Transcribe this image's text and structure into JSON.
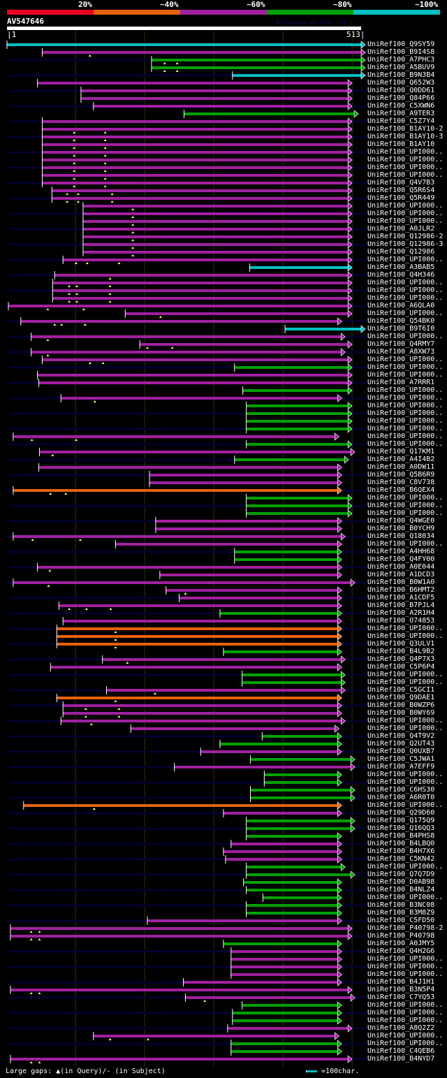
{
  "header": {
    "score_legend": [
      {
        "label": "20%",
        "color": "#ee0022"
      },
      {
        "label": "~40%",
        "color": "#e6620a"
      },
      {
        "label": "~60%",
        "color": "#a020a0"
      },
      {
        "label": "~80%",
        "color": "#00a000"
      },
      {
        "label": "~100%",
        "color": "#00c0c0"
      }
    ],
    "query_name": "AV547646",
    "credit": "AlignView.pm Beta rel.7",
    "query_start": "|1",
    "query_end": "513|"
  },
  "footer": {
    "gap_legend": "Large gaps: ▲(in Query)/- (in Subject)",
    "scale_legend": "=100char."
  },
  "colors": {
    "p": "#a020a0",
    "g": "#00a000",
    "c": "#00c0c0",
    "o": "#e6620a",
    "r": "#ee0022",
    "track": "#000030",
    "grid": "#303010"
  },
  "chart_data": {
    "type": "alignment-overview",
    "title": "AV547646",
    "query_length": 513,
    "x_range": [
      1,
      513
    ],
    "grid_ticks": [
      100,
      200,
      300,
      400,
      500
    ],
    "legend": [
      "20%",
      "~40%",
      "~60%",
      "~80%",
      "~100%"
    ],
    "hits": [
      {
        "label": "UniRef100_Q9SY59",
        "c": "c",
        "s": 1,
        "e": 513,
        "gaps": []
      },
      {
        "label": "UniRef100_B9I4S8",
        "c": "p",
        "s": 52,
        "e": 513,
        "gaps": [
          121
        ]
      },
      {
        "label": "UniRef100_A7PHC3",
        "c": "g",
        "s": 210,
        "e": 513,
        "gaps": [
          229,
          247
        ]
      },
      {
        "label": "UniRef100_A5BUV9",
        "c": "g",
        "s": 210,
        "e": 513,
        "gaps": [
          229,
          247
        ]
      },
      {
        "label": "UniRef100_B9N3B4",
        "c": "c",
        "s": 327,
        "e": 513,
        "gaps": []
      },
      {
        "label": "UniRef100_Q652W3",
        "c": "p",
        "s": 45,
        "e": 494,
        "gaps": []
      },
      {
        "label": "UniRef100_Q0DD61",
        "c": "p",
        "s": 108,
        "e": 494,
        "gaps": []
      },
      {
        "label": "UniRef100_Q84P66",
        "c": "p",
        "s": 108,
        "e": 494,
        "gaps": []
      },
      {
        "label": "UniRef100_C5XWN6",
        "c": "p",
        "s": 126,
        "e": 494,
        "gaps": []
      },
      {
        "label": "UniRef100_A9TER3",
        "c": "g",
        "s": 257,
        "e": 503,
        "gaps": []
      },
      {
        "label": "UniRef100_C5Z7Y4",
        "c": "p",
        "s": 52,
        "e": 494,
        "gaps": []
      },
      {
        "label": "UniRef100_B1AY10-2",
        "c": "p",
        "s": 52,
        "e": 494,
        "gaps": [
          98,
          143
        ]
      },
      {
        "label": "UniRef100_B1AY10-3",
        "c": "p",
        "s": 52,
        "e": 494,
        "gaps": [
          98,
          143
        ]
      },
      {
        "label": "UniRef100_B1AY10",
        "c": "p",
        "s": 52,
        "e": 494,
        "gaps": [
          98,
          143
        ]
      },
      {
        "label": "UniRef100_UPI000..",
        "c": "p",
        "s": 52,
        "e": 494,
        "gaps": [
          98,
          143
        ]
      },
      {
        "label": "UniRef100_UPI000..",
        "c": "p",
        "s": 52,
        "e": 494,
        "gaps": [
          98,
          143
        ]
      },
      {
        "label": "UniRef100_UPI000..",
        "c": "p",
        "s": 52,
        "e": 494,
        "gaps": [
          98,
          143
        ]
      },
      {
        "label": "UniRef100_UPI000..",
        "c": "p",
        "s": 52,
        "e": 494,
        "gaps": [
          98,
          143
        ]
      },
      {
        "label": "UniRef100_Q4V7B3",
        "c": "p",
        "s": 52,
        "e": 494,
        "gaps": [
          98,
          143
        ]
      },
      {
        "label": "UniRef100_Q5R6S4",
        "c": "p",
        "s": 66,
        "e": 494,
        "gaps": [
          88,
          104,
          153
        ]
      },
      {
        "label": "UniRef100_Q5R449",
        "c": "p",
        "s": 66,
        "e": 494,
        "gaps": [
          88,
          104,
          153
        ]
      },
      {
        "label": "UniRef100_UPI000..",
        "c": "p",
        "s": 111,
        "e": 494,
        "gaps": [
          183
        ]
      },
      {
        "label": "UniRef100_UPI000..",
        "c": "p",
        "s": 111,
        "e": 494,
        "gaps": [
          183
        ]
      },
      {
        "label": "UniRef100_UPI000..",
        "c": "p",
        "s": 111,
        "e": 494,
        "gaps": [
          183
        ]
      },
      {
        "label": "UniRef100_A0JLR2",
        "c": "p",
        "s": 111,
        "e": 494,
        "gaps": [
          183
        ]
      },
      {
        "label": "UniRef100_Q12986-2",
        "c": "p",
        "s": 111,
        "e": 494,
        "gaps": [
          183
        ]
      },
      {
        "label": "UniRef100_Q12986-3",
        "c": "p",
        "s": 111,
        "e": 494,
        "gaps": [
          183
        ]
      },
      {
        "label": "UniRef100_Q12986",
        "c": "p",
        "s": 111,
        "e": 494,
        "gaps": [
          183
        ]
      },
      {
        "label": "UniRef100_UPI000..",
        "c": "p",
        "s": 82,
        "e": 494,
        "gaps": [
          101,
          117,
          163
        ]
      },
      {
        "label": "UniRef100_A3BAB5",
        "c": "c",
        "s": 352,
        "e": 494,
        "gaps": []
      },
      {
        "label": "UniRef100_Q4H346",
        "c": "p",
        "s": 70,
        "e": 494,
        "gaps": [
          150
        ]
      },
      {
        "label": "UniRef100_UPI000..",
        "c": "p",
        "s": 67,
        "e": 494,
        "gaps": [
          91,
          102,
          150
        ]
      },
      {
        "label": "UniRef100_UPI000..",
        "c": "p",
        "s": 67,
        "e": 494,
        "gaps": [
          91,
          102,
          150
        ]
      },
      {
        "label": "UniRef100_UPI000..",
        "c": "p",
        "s": 67,
        "e": 494,
        "gaps": [
          91,
          102,
          150
        ]
      },
      {
        "label": "UniRef100_A6QLA0",
        "c": "p",
        "s": 3,
        "e": 494,
        "gaps": [
          60,
          112
        ]
      },
      {
        "label": "UniRef100_UPI000..",
        "c": "p",
        "s": 172,
        "e": 494,
        "gaps": [
          223
        ]
      },
      {
        "label": "UniRef100_Q54BK0",
        "c": "p",
        "s": 21,
        "e": 479,
        "gaps": [
          70,
          80,
          114
        ]
      },
      {
        "label": "UniRef100_B9T6I0",
        "c": "c",
        "s": 403,
        "e": 513,
        "gaps": []
      },
      {
        "label": "UniRef100_UPI000..",
        "c": "p",
        "s": 36,
        "e": 484,
        "gaps": [
          60
        ]
      },
      {
        "label": "UniRef100_Q4RMY7",
        "c": "p",
        "s": 193,
        "e": 494,
        "gaps": [
          204,
          240
        ]
      },
      {
        "label": "UniRef100_A8XW73",
        "c": "p",
        "s": 36,
        "e": 484,
        "gaps": [
          60
        ]
      },
      {
        "label": "UniRef100_UPI000..",
        "c": "p",
        "s": 52,
        "e": 494,
        "gaps": [
          121,
          140
        ]
      },
      {
        "label": "UniRef100_UPI000..",
        "c": "g",
        "s": 330,
        "e": 494,
        "gaps": []
      },
      {
        "label": "UniRef100_UPI000..",
        "c": "p",
        "s": 45,
        "e": 494,
        "gaps": []
      },
      {
        "label": "UniRef100_A7RRR1",
        "c": "p",
        "s": 47,
        "e": 494,
        "gaps": []
      },
      {
        "label": "UniRef100_UPI000..",
        "c": "g",
        "s": 342,
        "e": 494,
        "gaps": []
      },
      {
        "label": "UniRef100_UPI000..",
        "c": "p",
        "s": 79,
        "e": 479,
        "gaps": [
          128
        ]
      },
      {
        "label": "UniRef100_UPI000..",
        "c": "g",
        "s": 347,
        "e": 494,
        "gaps": []
      },
      {
        "label": "UniRef100_UPI000..",
        "c": "g",
        "s": 347,
        "e": 494,
        "gaps": []
      },
      {
        "label": "UniRef100_UPI000..",
        "c": "g",
        "s": 347,
        "e": 494,
        "gaps": []
      },
      {
        "label": "UniRef100_UPI000..",
        "c": "g",
        "s": 347,
        "e": 494,
        "gaps": []
      },
      {
        "label": "UniRef100_UPI000..",
        "c": "p",
        "s": 10,
        "e": 475,
        "gaps": [
          37,
          101
        ]
      },
      {
        "label": "UniRef100_UPI000..",
        "c": "g",
        "s": 347,
        "e": 494,
        "gaps": []
      },
      {
        "label": "UniRef100_Q17KM1",
        "c": "p",
        "s": 48,
        "e": 498,
        "gaps": [
          67
        ]
      },
      {
        "label": "UniRef100_A4I4B2",
        "c": "g",
        "s": 330,
        "e": 489,
        "gaps": []
      },
      {
        "label": "UniRef100_A0DW11",
        "c": "p",
        "s": 47,
        "e": 479,
        "gaps": []
      },
      {
        "label": "UniRef100_Q5B6R9",
        "c": "p",
        "s": 207,
        "e": 479,
        "gaps": []
      },
      {
        "label": "UniRef100_C8V738",
        "c": "p",
        "s": 207,
        "e": 479,
        "gaps": []
      },
      {
        "label": "UniRef100_B6QEX4",
        "c": "o",
        "s": 10,
        "e": 479,
        "gaps": [
          64,
          86
        ]
      },
      {
        "label": "UniRef100_UPI000..",
        "c": "g",
        "s": 347,
        "e": 494,
        "gaps": []
      },
      {
        "label": "UniRef100_UPI000..",
        "c": "g",
        "s": 347,
        "e": 494,
        "gaps": []
      },
      {
        "label": "UniRef100_UPI000..",
        "c": "g",
        "s": 347,
        "e": 494,
        "gaps": []
      },
      {
        "label": "UniRef100_Q4WGE0",
        "c": "p",
        "s": 216,
        "e": 479,
        "gaps": []
      },
      {
        "label": "UniRef100_B0YCH9",
        "c": "p",
        "s": 216,
        "e": 479,
        "gaps": []
      },
      {
        "label": "UniRef100_Q18034",
        "c": "p",
        "s": 10,
        "e": 484,
        "gaps": [
          38,
          107
        ]
      },
      {
        "label": "UniRef100_UPI000..",
        "c": "p",
        "s": 158,
        "e": 479,
        "gaps": []
      },
      {
        "label": "UniRef100_A4HH68",
        "c": "g",
        "s": 330,
        "e": 479,
        "gaps": []
      },
      {
        "label": "UniRef100_Q4FY00",
        "c": "g",
        "s": 330,
        "e": 479,
        "gaps": []
      },
      {
        "label": "UniRef100_A0E044",
        "c": "p",
        "s": 45,
        "e": 479,
        "gaps": [
          63
        ]
      },
      {
        "label": "UniRef100_A1DCD3",
        "c": "p",
        "s": 222,
        "e": 479,
        "gaps": []
      },
      {
        "label": "UniRef100_B0W1A0",
        "c": "p",
        "s": 10,
        "e": 498,
        "gaps": [
          61
        ]
      },
      {
        "label": "UniRef100_B6HMT2",
        "c": "p",
        "s": 231,
        "e": 479,
        "gaps": [
          259
        ]
      },
      {
        "label": "UniRef100_A1CDF5",
        "c": "p",
        "s": 250,
        "e": 479,
        "gaps": []
      },
      {
        "label": "UniRef100_B7PJL4",
        "c": "p",
        "s": 76,
        "e": 479,
        "gaps": [
          91,
          116,
          151
        ]
      },
      {
        "label": "UniRef100_A2R1H4",
        "c": "g",
        "s": 309,
        "e": 479,
        "gaps": []
      },
      {
        "label": "UniRef100_O74853",
        "c": "p",
        "s": 82,
        "e": 479,
        "gaps": []
      },
      {
        "label": "UniRef100_UPI000..",
        "c": "o",
        "s": 73,
        "e": 479,
        "gaps": [
          158
        ]
      },
      {
        "label": "UniRef100_UPI000..",
        "c": "o",
        "s": 73,
        "e": 479,
        "gaps": [
          158
        ]
      },
      {
        "label": "UniRef100_Q3ULV1",
        "c": "o",
        "s": 73,
        "e": 479,
        "gaps": [
          158
        ]
      },
      {
        "label": "UniRef100_B4L9B2",
        "c": "g",
        "s": 314,
        "e": 479,
        "gaps": []
      },
      {
        "label": "UniRef100_Q4P7X3",
        "c": "p",
        "s": 139,
        "e": 484,
        "gaps": [
          175
        ]
      },
      {
        "label": "UniRef100_C5P6P4",
        "c": "p",
        "s": 64,
        "e": 479,
        "gaps": []
      },
      {
        "label": "UniRef100_UPI000..",
        "c": "g",
        "s": 341,
        "e": 484,
        "gaps": []
      },
      {
        "label": "UniRef100_UPI000..",
        "c": "g",
        "s": 341,
        "e": 484,
        "gaps": []
      },
      {
        "label": "UniRef100_C5GCI1",
        "c": "p",
        "s": 145,
        "e": 484,
        "gaps": [
          215
        ]
      },
      {
        "label": "UniRef100_Q9DAE1",
        "c": "o",
        "s": 73,
        "e": 479,
        "gaps": [
          158
        ]
      },
      {
        "label": "UniRef100_B0WZP6",
        "c": "p",
        "s": 82,
        "e": 479,
        "gaps": [
          115,
          163
        ]
      },
      {
        "label": "UniRef100_B0WY69",
        "c": "p",
        "s": 82,
        "e": 479,
        "gaps": [
          115,
          163
        ]
      },
      {
        "label": "UniRef100_UPI000..",
        "c": "p",
        "s": 79,
        "e": 484,
        "gaps": [
          123
        ]
      },
      {
        "label": "UniRef100_UPI000..",
        "c": "p",
        "s": 180,
        "e": 475,
        "gaps": []
      },
      {
        "label": "UniRef100_Q4T9V2",
        "c": "g",
        "s": 370,
        "e": 479,
        "gaps": []
      },
      {
        "label": "UniRef100_Q2UT43",
        "c": "g",
        "s": 309,
        "e": 479,
        "gaps": []
      },
      {
        "label": "UniRef100_Q0UXB7",
        "c": "p",
        "s": 281,
        "e": 479,
        "gaps": []
      },
      {
        "label": "UniRef100_C5JWA1",
        "c": "g",
        "s": 353,
        "e": 498,
        "gaps": []
      },
      {
        "label": "UniRef100_A7EFF9",
        "c": "p",
        "s": 243,
        "e": 498,
        "gaps": []
      },
      {
        "label": "UniRef100_UPI000..",
        "c": "g",
        "s": 373,
        "e": 479,
        "gaps": []
      },
      {
        "label": "UniRef100_UPI000..",
        "c": "g",
        "s": 373,
        "e": 479,
        "gaps": []
      },
      {
        "label": "UniRef100_C6HS30",
        "c": "g",
        "s": 353,
        "e": 498,
        "gaps": []
      },
      {
        "label": "UniRef100_A6R0T0",
        "c": "g",
        "s": 353,
        "e": 498,
        "gaps": []
      },
      {
        "label": "UniRef100_UPI000..",
        "c": "o",
        "s": 25,
        "e": 479,
        "gaps": [
          127
        ]
      },
      {
        "label": "UniRef100_Q29D60",
        "c": "p",
        "s": 314,
        "e": 479,
        "gaps": []
      },
      {
        "label": "UniRef100_Q175Q9",
        "c": "g",
        "s": 347,
        "e": 498,
        "gaps": []
      },
      {
        "label": "UniRef100_Q16QQ3",
        "c": "g",
        "s": 347,
        "e": 498,
        "gaps": []
      },
      {
        "label": "UniRef100_B4PHS8",
        "c": "g",
        "s": 347,
        "e": 479,
        "gaps": []
      },
      {
        "label": "UniRef100_B4LBQ0",
        "c": "p",
        "s": 325,
        "e": 479,
        "gaps": []
      },
      {
        "label": "UniRef100_B4H7X6",
        "c": "p",
        "s": 314,
        "e": 479,
        "gaps": []
      },
      {
        "label": "UniRef100_C5KN42",
        "c": "p",
        "s": 317,
        "e": 479,
        "gaps": []
      },
      {
        "label": "UniRef100_UPI000..",
        "c": "g",
        "s": 347,
        "e": 484,
        "gaps": []
      },
      {
        "label": "UniRef100_Q7Q7D9",
        "c": "g",
        "s": 347,
        "e": 498,
        "gaps": []
      },
      {
        "label": "UniRef100_D0AB98",
        "c": "g",
        "s": 343,
        "e": 479,
        "gaps": []
      },
      {
        "label": "UniRef100_B4NLZ4",
        "c": "g",
        "s": 347,
        "e": 479,
        "gaps": []
      },
      {
        "label": "UniRef100_UPI000..",
        "c": "g",
        "s": 371,
        "e": 479,
        "gaps": []
      },
      {
        "label": "UniRef100_B3NC08",
        "c": "g",
        "s": 347,
        "e": 479,
        "gaps": []
      },
      {
        "label": "UniRef100_B3M8Z9",
        "c": "g",
        "s": 347,
        "e": 479,
        "gaps": []
      },
      {
        "label": "UniRef100_C5FD50",
        "c": "p",
        "s": 204,
        "e": 479,
        "gaps": []
      },
      {
        "label": "UniRef100_P40798-2",
        "c": "p",
        "s": 6,
        "e": 494,
        "gaps": [
          36,
          48
        ]
      },
      {
        "label": "UniRef100_P40798",
        "c": "p",
        "s": 6,
        "e": 494,
        "gaps": [
          36,
          48
        ]
      },
      {
        "label": "UniRef100_A0JMY5",
        "c": "g",
        "s": 314,
        "e": 479,
        "gaps": []
      },
      {
        "label": "UniRef100_Q4H2G6",
        "c": "p",
        "s": 325,
        "e": 479,
        "gaps": []
      },
      {
        "label": "UniRef100_UPI000..",
        "c": "p",
        "s": 325,
        "e": 479,
        "gaps": []
      },
      {
        "label": "UniRef100_UPI000..",
        "c": "p",
        "s": 325,
        "e": 479,
        "gaps": []
      },
      {
        "label": "UniRef100_UPI000..",
        "c": "p",
        "s": 325,
        "e": 479,
        "gaps": []
      },
      {
        "label": "UniRef100_B4J1H1",
        "c": "p",
        "s": 256,
        "e": 479,
        "gaps": []
      },
      {
        "label": "UniRef100_B3N5P4",
        "c": "p",
        "s": 6,
        "e": 494,
        "gaps": [
          36,
          48
        ]
      },
      {
        "label": "UniRef100_C7YQ53",
        "c": "p",
        "s": 259,
        "e": 498,
        "gaps": [
          287
        ]
      },
      {
        "label": "UniRef100_UPI000..",
        "c": "g",
        "s": 341,
        "e": 479,
        "gaps": []
      },
      {
        "label": "UniRef100_UPI000..",
        "c": "g",
        "s": 327,
        "e": 479,
        "gaps": []
      },
      {
        "label": "UniRef100_UPI000..",
        "c": "g",
        "s": 327,
        "e": 479,
        "gaps": []
      },
      {
        "label": "UniRef100_A8Q2Z2",
        "c": "p",
        "s": 320,
        "e": 494,
        "gaps": []
      },
      {
        "label": "UniRef100_UPI000..",
        "c": "p",
        "s": 126,
        "e": 475,
        "gaps": [
          150,
          205
        ]
      },
      {
        "label": "UniRef100_UPI000..",
        "c": "g",
        "s": 325,
        "e": 479,
        "gaps": []
      },
      {
        "label": "UniRef100_C4QEB6",
        "c": "g",
        "s": 325,
        "e": 479,
        "gaps": []
      },
      {
        "label": "UniRef100_B4NYD7",
        "c": "p",
        "s": 6,
        "e": 494,
        "gaps": [
          36,
          48
        ]
      }
    ]
  }
}
